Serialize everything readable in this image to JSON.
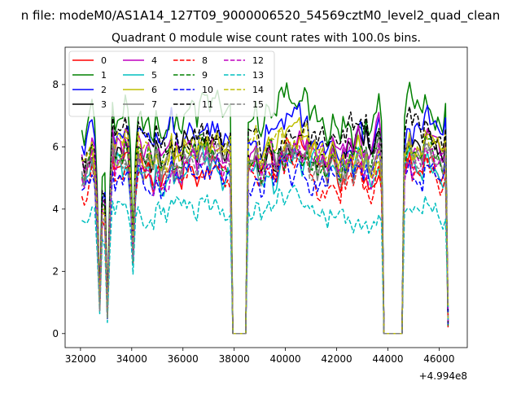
{
  "chart_data": {
    "type": "line",
    "suptitle": "n file: modeM0/AS1A14_127T09_9000006520_54569cztM0_level2_quad_clean",
    "title": "Quadrant 0 module wise count rates with 100.0s bins.",
    "xlabel": "",
    "ylabel": "",
    "x_offset_label": "+4.994e8",
    "xlim": [
      31400,
      47100
    ],
    "ylim": [
      -0.45,
      9.2
    ],
    "x_ticks": [
      32000,
      34000,
      36000,
      38000,
      40000,
      42000,
      44000,
      46000
    ],
    "x_tick_labels": [
      "32000",
      "34000",
      "36000",
      "38000",
      "40000",
      "42000",
      "44000",
      "46000"
    ],
    "y_ticks": [
      0,
      2,
      4,
      6,
      8
    ],
    "y_tick_labels": [
      "0",
      "2",
      "4",
      "6",
      "8"
    ],
    "grid": false,
    "legend_position": "top-left",
    "legend_columns": 4,
    "x_range": [
      32050,
      46350
    ],
    "bin_seconds": 100,
    "gaps": [
      {
        "start": 37950,
        "end": 38450
      },
      {
        "start": 43850,
        "end": 44600
      }
    ],
    "dips": [
      {
        "x": 32750,
        "depth": 0.85
      },
      {
        "x": 33050,
        "depth": 0.9
      },
      {
        "x": 34050,
        "depth": 0.6
      }
    ],
    "series": [
      {
        "name": "0",
        "color": "#ff0000",
        "dash": "solid",
        "level": 5.3
      },
      {
        "name": "1",
        "color": "#008000",
        "dash": "solid",
        "level": 6.9
      },
      {
        "name": "2",
        "color": "#0000ff",
        "dash": "solid",
        "level": 6.3
      },
      {
        "name": "3",
        "color": "#000000",
        "dash": "solid",
        "level": 5.8
      },
      {
        "name": "4",
        "color": "#bf00bf",
        "dash": "solid",
        "level": 5.9
      },
      {
        "name": "5",
        "color": "#00bfbf",
        "dash": "solid",
        "level": 5.2
      },
      {
        "name": "6",
        "color": "#bfbf00",
        "dash": "solid",
        "level": 5.7
      },
      {
        "name": "7",
        "color": "#808080",
        "dash": "solid",
        "level": 5.4
      },
      {
        "name": "8",
        "color": "#ff0000",
        "dash": "dashed",
        "level": 5.0
      },
      {
        "name": "9",
        "color": "#008000",
        "dash": "dashed",
        "level": 5.6
      },
      {
        "name": "10",
        "color": "#0000ff",
        "dash": "dashed",
        "level": 5.1
      },
      {
        "name": "11",
        "color": "#000000",
        "dash": "dashed",
        "level": 6.2
      },
      {
        "name": "12",
        "color": "#bf00bf",
        "dash": "dashed",
        "level": 5.4
      },
      {
        "name": "13",
        "color": "#00bfbf",
        "dash": "dashed",
        "level": 3.9
      },
      {
        "name": "14",
        "color": "#bfbf00",
        "dash": "dashed",
        "level": 5.9
      },
      {
        "name": "15",
        "color": "#808080",
        "dash": "dashed",
        "level": 5.5
      }
    ]
  }
}
